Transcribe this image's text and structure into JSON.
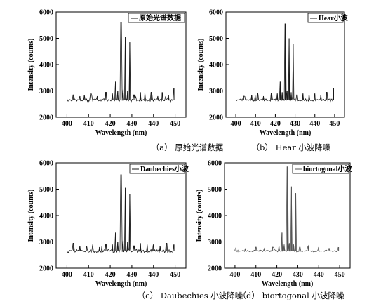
{
  "figure": {
    "panels": [
      {
        "legend": "原始光谱数据",
        "caption": "（a） 原始光谱数据"
      },
      {
        "legend": "Hear小波",
        "caption": "（b） Hear 小波降噪"
      },
      {
        "legend": "Daubechies小波",
        "caption": "（c） Daubechies 小波降噪"
      },
      {
        "legend": "biortogonal小波",
        "caption": "（d） biortogonal 小波降噪"
      }
    ]
  },
  "chart_data": [
    {
      "type": "line",
      "title": "",
      "legend": [
        "原始光谱数据"
      ],
      "legend_position": "top-right",
      "xlabel": "Wavelength (nm)",
      "ylabel": "Intensity (counts)",
      "xlim": [
        395,
        455
      ],
      "ylim": [
        2000,
        6000
      ],
      "xticks": [
        400,
        410,
        420,
        430,
        440,
        450
      ],
      "yticks": [
        2000,
        3000,
        4000,
        5000,
        6000
      ],
      "baseline": 2650,
      "noise": 60,
      "color": "#1a1a1a",
      "series": [
        {
          "name": "原始光谱数据",
          "x": [
            400,
            403,
            406,
            408,
            411,
            414,
            418,
            421,
            422.5,
            423.5,
            425,
            426,
            427,
            428,
            429,
            431,
            434,
            436,
            439,
            442,
            444,
            447,
            449.5
          ],
          "y": [
            2650,
            2850,
            2800,
            2850,
            2900,
            2800,
            2950,
            2900,
            3350,
            3000,
            5600,
            3050,
            5050,
            3000,
            4850,
            2850,
            2950,
            2900,
            2950,
            2800,
            2950,
            2850,
            3100
          ]
        }
      ]
    },
    {
      "type": "line",
      "title": "",
      "legend": [
        "Hear小波"
      ],
      "legend_position": "top-right",
      "xlabel": "Wavelength (nm)",
      "ylabel": "Intensity (counts)",
      "xlim": [
        395,
        455
      ],
      "ylim": [
        2000,
        6000
      ],
      "xticks": [
        400,
        410,
        420,
        430,
        440,
        450
      ],
      "yticks": [
        2000,
        3000,
        4000,
        5000,
        6000
      ],
      "baseline": 2650,
      "noise": 45,
      "color": "#1a1a1a",
      "series": [
        {
          "name": "Hear小波",
          "x": [
            400,
            404,
            408,
            411,
            414,
            418,
            421,
            422.5,
            423.5,
            425,
            426,
            427,
            428,
            429,
            431,
            434,
            437,
            440,
            443,
            446,
            449.5
          ],
          "y": [
            2650,
            2800,
            2850,
            2900,
            2800,
            2900,
            2900,
            3350,
            2950,
            5550,
            3000,
            5000,
            2950,
            4800,
            2850,
            2900,
            2850,
            2900,
            2850,
            2950,
            3100
          ]
        }
      ]
    },
    {
      "type": "line",
      "title": "",
      "legend": [
        "Daubechies小波"
      ],
      "legend_position": "top-right",
      "xlabel": "Wavelength (nm)",
      "ylabel": "Intensity (counts)",
      "xlim": [
        395,
        455
      ],
      "ylim": [
        2000,
        6000
      ],
      "xticks": [
        400,
        410,
        420,
        430,
        440,
        450
      ],
      "yticks": [
        2000,
        3000,
        4000,
        5000,
        6000
      ],
      "baseline": 2650,
      "noise": 60,
      "color": "#1a1a1a",
      "series": [
        {
          "name": "Daubechies小波",
          "x": [
            400,
            403,
            406,
            409,
            412,
            415,
            418,
            421,
            422.5,
            423.5,
            425,
            426,
            427,
            428,
            429,
            431,
            434,
            437,
            440,
            443,
            446,
            449.5
          ],
          "y": [
            2650,
            2950,
            2850,
            2850,
            2900,
            2800,
            2900,
            2900,
            3350,
            3000,
            5550,
            3050,
            5050,
            3000,
            4800,
            2850,
            2950,
            2900,
            2900,
            2850,
            2950,
            2900
          ]
        }
      ]
    },
    {
      "type": "line",
      "title": "",
      "legend": [
        "biortogonal小波"
      ],
      "legend_position": "top-right",
      "xlabel": "Wavelength (nm)",
      "ylabel": "Intensity (counts)",
      "xlim": [
        395,
        455
      ],
      "ylim": [
        2000,
        6000
      ],
      "xticks": [
        400,
        410,
        420,
        430,
        440,
        450
      ],
      "yticks": [
        2000,
        3000,
        4000,
        5000,
        6000
      ],
      "baseline": 2650,
      "noise": 35,
      "color": "#555555",
      "series": [
        {
          "name": "biortogonal小波",
          "x": [
            400,
            405,
            410,
            414,
            418,
            421,
            422.5,
            423.5,
            425,
            426,
            427,
            428,
            429,
            431,
            435,
            440,
            445,
            449.5
          ],
          "y": [
            2700,
            2750,
            2800,
            2750,
            2800,
            2850,
            3350,
            2900,
            5850,
            2950,
            5100,
            2900,
            4850,
            2800,
            2850,
            2800,
            2750,
            2800
          ]
        }
      ]
    }
  ]
}
